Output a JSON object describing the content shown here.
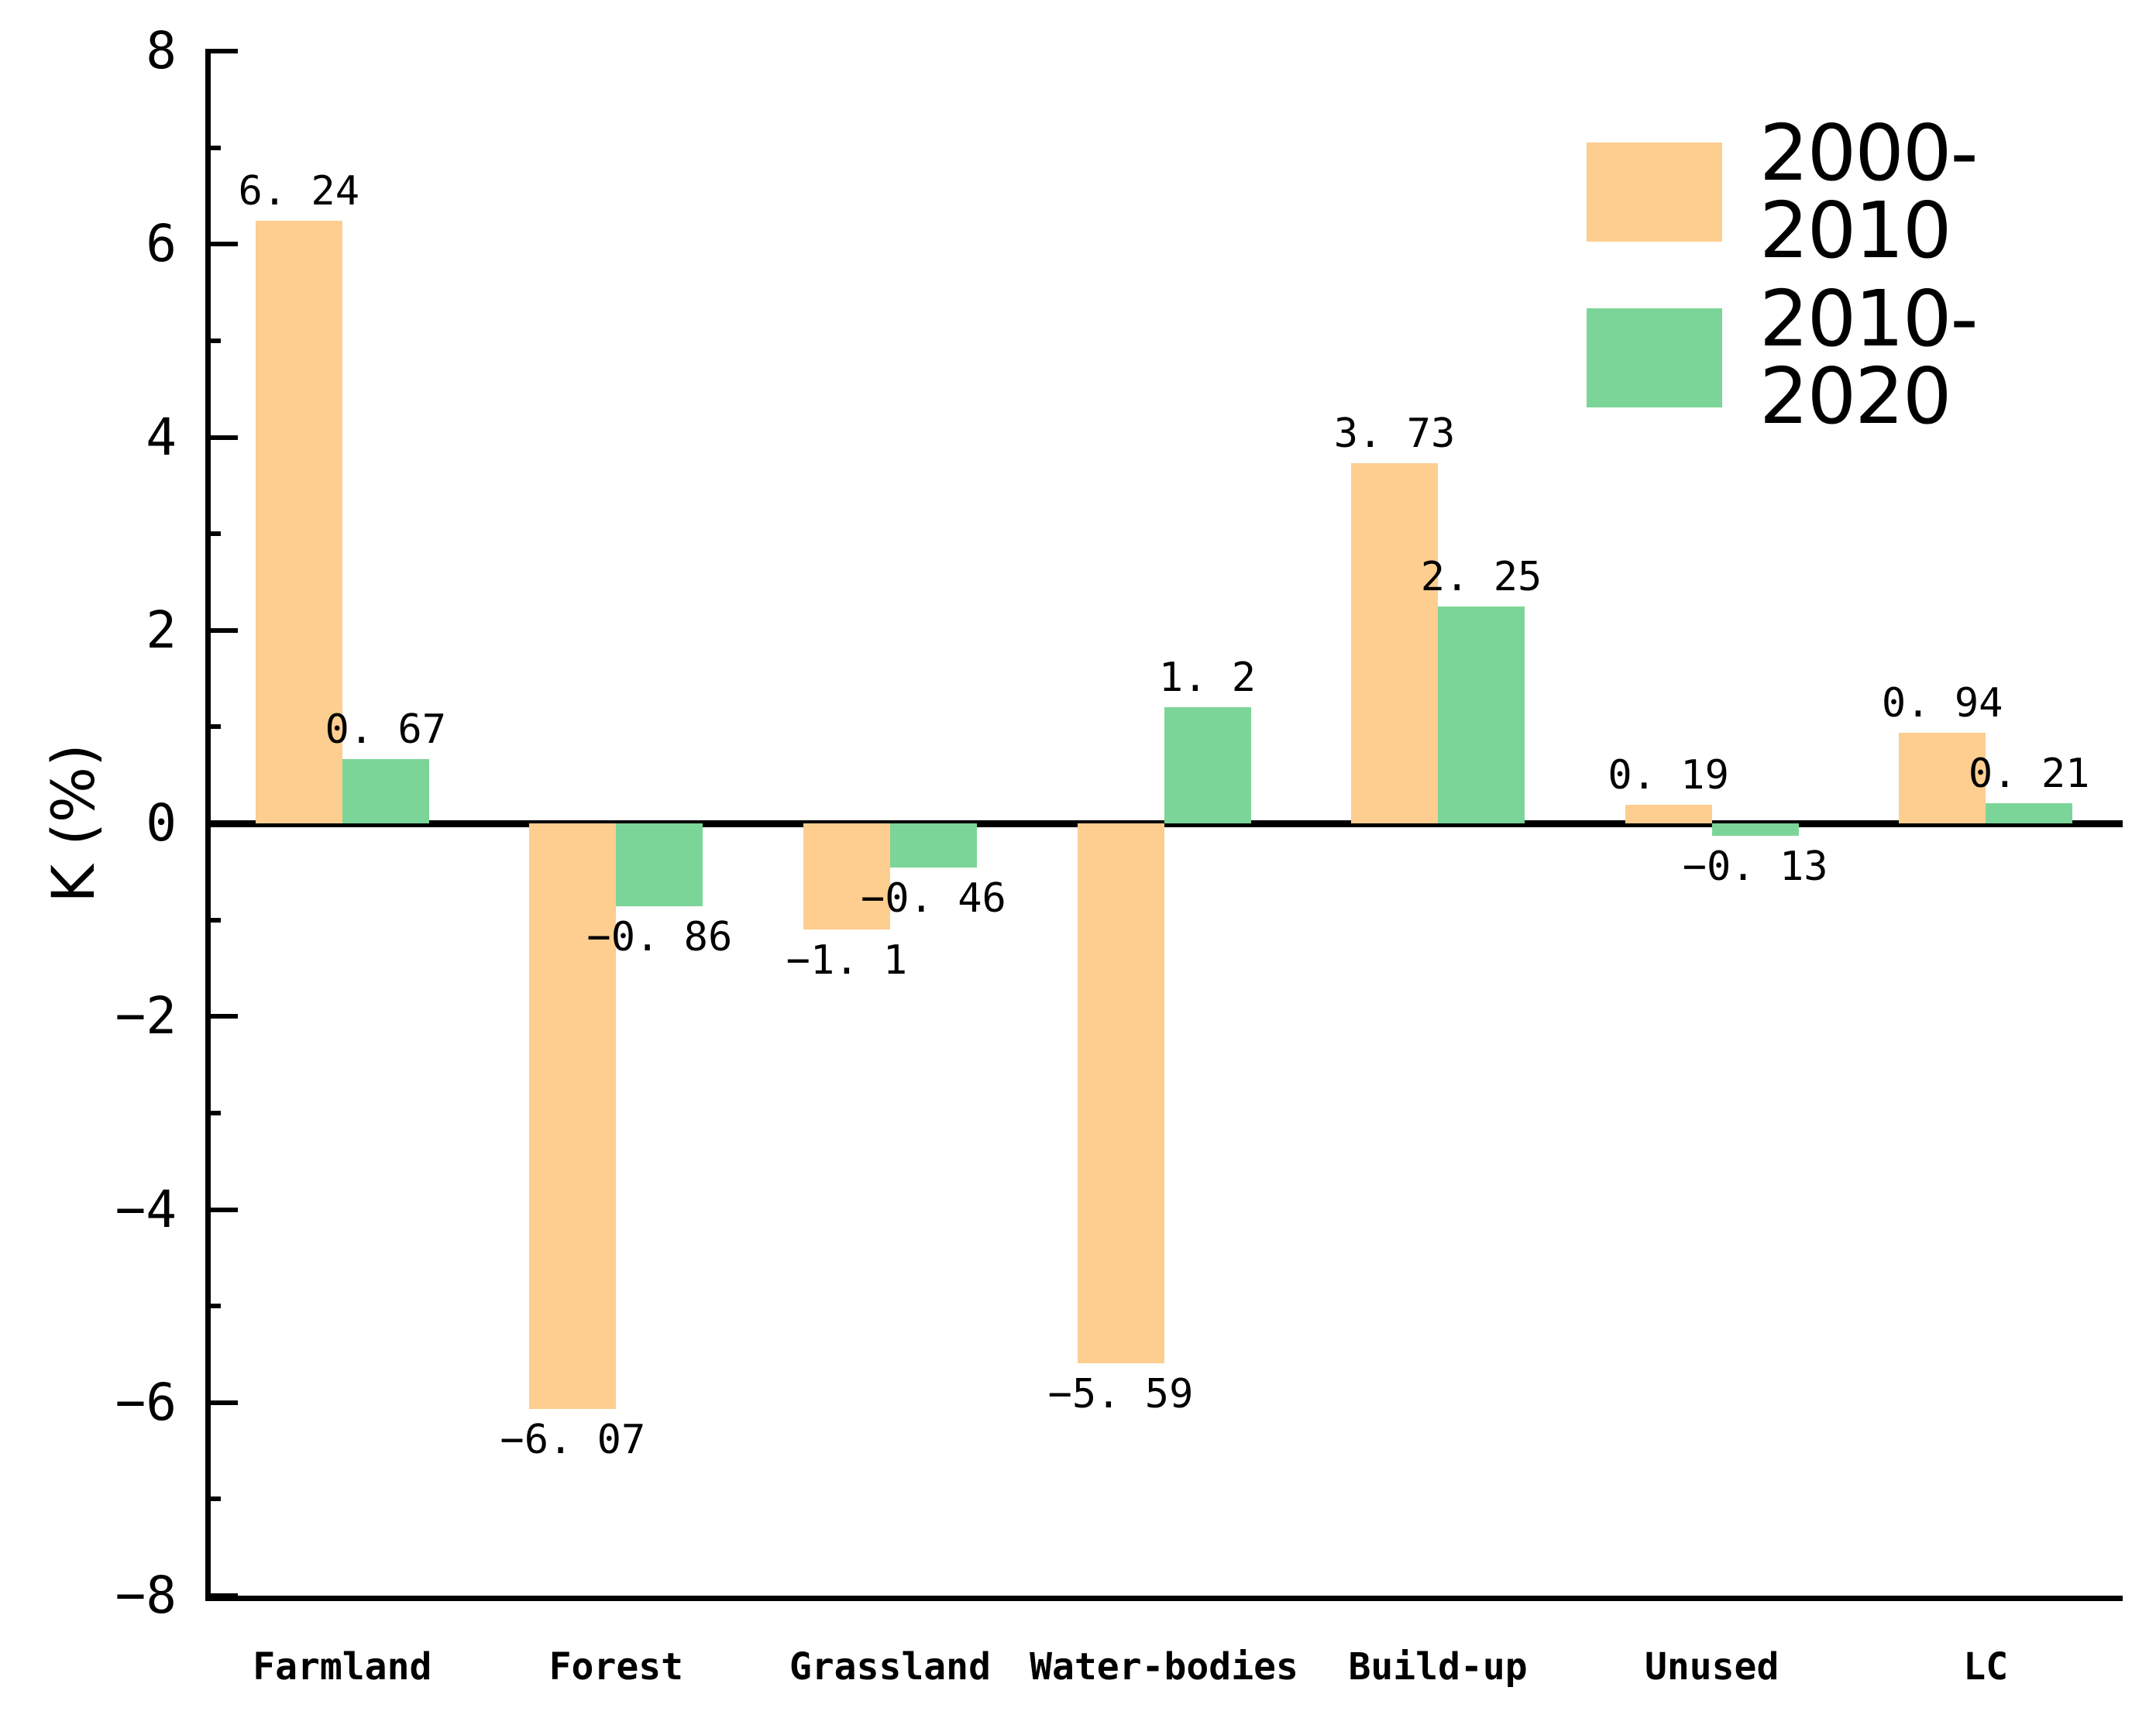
{
  "figure": {
    "kind": "grouped bar chart",
    "background": "#ffffff"
  },
  "axes": {
    "y_label": "K (%)",
    "y_tick_labels": [
      "8",
      "6",
      "4",
      "2",
      "0",
      "−2",
      "−4",
      "−6",
      "−8"
    ],
    "y_tick_values": [
      8,
      6,
      4,
      2,
      0,
      -2,
      -4,
      -6,
      -8
    ]
  },
  "legend": {
    "position": "top-right",
    "entries": [
      {
        "label": "2000-2010",
        "color": "#FDCE8F"
      },
      {
        "label": "2010-2020",
        "color": "#7CD598"
      }
    ]
  },
  "chart_data": {
    "type": "bar",
    "categories": [
      "Farmland",
      "Forest",
      "Grassland",
      "Water-bodies",
      "Build-up",
      "Unused",
      "LC"
    ],
    "series": [
      {
        "name": "2000-2010",
        "color": "#FDCE8F",
        "values": [
          6.24,
          -6.07,
          -1.1,
          -5.59,
          3.73,
          0.19,
          0.94
        ],
        "labels": [
          "6. 24",
          "−6. 07",
          "−1. 1",
          "−5. 59",
          "3. 73",
          "0. 19",
          "0. 94"
        ]
      },
      {
        "name": "2010-2020",
        "color": "#7CD598",
        "values": [
          0.67,
          -0.86,
          -0.46,
          1.2,
          2.25,
          -0.13,
          0.21
        ],
        "labels": [
          "0. 67",
          "−0. 86",
          "−0. 46",
          "1. 2",
          "2. 25",
          "−0. 13",
          "0. 21"
        ]
      }
    ],
    "title": "",
    "xlabel": "",
    "ylabel": "K (%)",
    "ylim": [
      -8,
      8
    ],
    "y_major_step": 2,
    "y_minor_step": 1,
    "grid": false,
    "legend_position": "top-right",
    "bar_value_labels_shown": true
  }
}
